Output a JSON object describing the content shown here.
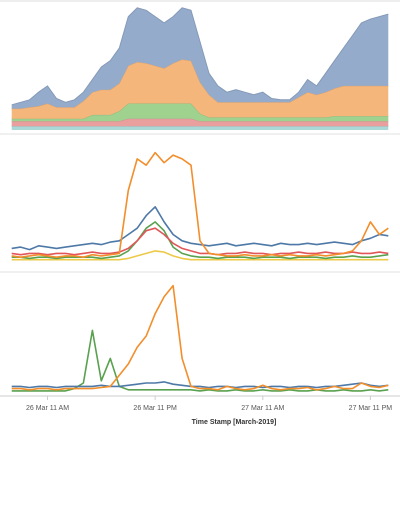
{
  "chart_data": [
    {
      "type": "area",
      "stacked": true,
      "ylim": [
        0,
        100
      ],
      "xlim": [
        -5.3,
        39.3
      ],
      "x": [
        -4,
        -3,
        -2,
        -1,
        0,
        1,
        2,
        3,
        4,
        5,
        6,
        7,
        8,
        9,
        10,
        11,
        12,
        13,
        14,
        15,
        16,
        17,
        18,
        19,
        20,
        21,
        22,
        23,
        24,
        25,
        26,
        27,
        28,
        29,
        30,
        31,
        32,
        33,
        34,
        35,
        36,
        37,
        38
      ],
      "series": [
        {
          "color": "#a9d8d6",
          "values": [
            3,
            3,
            3,
            3,
            3,
            3,
            3,
            3,
            3,
            3,
            3,
            3,
            3,
            3,
            3,
            3,
            3,
            3,
            3,
            3,
            3,
            3,
            3,
            3,
            3,
            3,
            3,
            3,
            3,
            3,
            3,
            3,
            3,
            3,
            3,
            3,
            3,
            3,
            3,
            3,
            3,
            3,
            3
          ]
        },
        {
          "color": "#ea9f9f",
          "values": [
            4,
            4,
            4,
            4,
            4,
            4,
            4,
            4,
            4,
            4,
            4,
            4,
            4,
            6,
            6,
            6,
            6,
            6,
            6,
            6,
            6,
            4,
            4,
            4,
            4,
            4,
            4,
            4,
            4,
            4,
            4,
            4,
            4,
            4,
            4,
            4,
            4,
            4,
            4,
            4,
            4,
            4,
            4
          ]
        },
        {
          "color": "#9fd18f",
          "values": [
            2,
            2,
            2,
            2,
            2,
            2,
            2,
            2,
            2,
            5,
            5,
            5,
            8,
            12,
            12,
            12,
            12,
            12,
            12,
            12,
            12,
            6,
            3,
            3,
            3,
            3,
            3,
            3,
            3,
            3,
            3,
            3,
            3,
            3,
            3,
            3,
            4,
            4,
            4,
            4,
            4,
            4,
            4
          ]
        },
        {
          "color": "#f5b67c",
          "values": [
            8,
            8,
            9,
            10,
            12,
            9,
            9,
            9,
            14,
            18,
            20,
            20,
            22,
            30,
            33,
            32,
            30,
            28,
            32,
            35,
            34,
            25,
            18,
            12,
            12,
            12,
            12,
            12,
            12,
            12,
            12,
            12,
            16,
            20,
            18,
            20,
            22,
            24,
            24,
            24,
            24,
            24,
            24
          ]
        },
        {
          "color": "#94abcb",
          "values": [
            3,
            5,
            6,
            11,
            14,
            7,
            4,
            6,
            7,
            10,
            18,
            23,
            28,
            39,
            43,
            42,
            39,
            36,
            37,
            41,
            40,
            32,
            17,
            13,
            8,
            10,
            8,
            6,
            8,
            3,
            2,
            2,
            4,
            10,
            7,
            15,
            22,
            30,
            40,
            50,
            53,
            55,
            57
          ]
        }
      ]
    },
    {
      "type": "line",
      "ylim": [
        0,
        100
      ],
      "xlim": [
        -5.3,
        39.3
      ],
      "x": [
        -4,
        -3,
        -2,
        -1,
        0,
        1,
        2,
        3,
        4,
        5,
        6,
        7,
        8,
        9,
        10,
        11,
        12,
        13,
        14,
        15,
        16,
        17,
        18,
        19,
        20,
        21,
        22,
        23,
        24,
        25,
        26,
        27,
        28,
        29,
        30,
        31,
        32,
        33,
        34,
        35,
        36,
        37,
        38
      ],
      "series": [
        {
          "color": "#edc948",
          "values": [
            5,
            5,
            5,
            5,
            5,
            5,
            5,
            5,
            5,
            5,
            5,
            5,
            5,
            6,
            8,
            10,
            12,
            11,
            8,
            6,
            5,
            5,
            5,
            5,
            5,
            5,
            5,
            5,
            5,
            5,
            5,
            5,
            5,
            5,
            5,
            5,
            5,
            5,
            5,
            5,
            5,
            5,
            5
          ]
        },
        {
          "color": "#59a14f",
          "values": [
            7,
            7,
            6,
            7,
            7,
            6,
            7,
            7,
            7,
            7,
            6,
            7,
            8,
            12,
            20,
            30,
            35,
            28,
            15,
            10,
            8,
            7,
            7,
            6,
            7,
            7,
            7,
            6,
            7,
            7,
            7,
            6,
            7,
            7,
            7,
            6,
            7,
            7,
            8,
            7,
            7,
            8,
            9
          ]
        },
        {
          "color": "#e15759",
          "values": [
            10,
            9,
            10,
            10,
            9,
            10,
            10,
            9,
            10,
            11,
            10,
            10,
            11,
            14,
            20,
            28,
            30,
            25,
            18,
            14,
            12,
            10,
            10,
            9,
            10,
            10,
            11,
            10,
            10,
            9,
            10,
            10,
            11,
            10,
            10,
            11,
            10,
            10,
            11,
            10,
            10,
            11,
            10
          ]
        },
        {
          "color": "#4e79a7",
          "values": [
            14,
            15,
            13,
            16,
            15,
            14,
            15,
            16,
            17,
            18,
            17,
            19,
            20,
            25,
            30,
            40,
            47,
            35,
            25,
            20,
            18,
            17,
            16,
            17,
            18,
            16,
            17,
            18,
            17,
            16,
            18,
            17,
            17,
            18,
            17,
            18,
            19,
            18,
            17,
            20,
            22,
            25,
            24
          ]
        },
        {
          "color": "#f28e2b",
          "values": [
            8,
            7,
            8,
            9,
            8,
            7,
            8,
            8,
            7,
            9,
            8,
            9,
            10,
            60,
            85,
            80,
            90,
            82,
            88,
            85,
            80,
            20,
            10,
            9,
            8,
            8,
            9,
            8,
            8,
            9,
            8,
            9,
            8,
            8,
            9,
            8,
            9,
            10,
            12,
            20,
            35,
            25,
            30
          ]
        }
      ]
    },
    {
      "type": "line",
      "ylim": [
        0,
        100
      ],
      "xlim": [
        -5.3,
        39.3
      ],
      "x": [
        -4,
        -3,
        -2,
        -1,
        0,
        1,
        2,
        3,
        4,
        5,
        6,
        7,
        8,
        9,
        10,
        11,
        12,
        13,
        14,
        15,
        16,
        17,
        18,
        19,
        20,
        21,
        22,
        23,
        24,
        25,
        26,
        27,
        28,
        29,
        30,
        31,
        32,
        33,
        34,
        35,
        36,
        37,
        38
      ],
      "xticks": [
        {
          "value": 0,
          "label": "26 Mar 11 AM"
        },
        {
          "value": 12,
          "label": "26 Mar 11 PM"
        },
        {
          "value": 24,
          "label": "27 Mar 11 AM"
        },
        {
          "value": 36,
          "label": "27 Mar 11 PM"
        }
      ],
      "xlabel": "Time Stamp [March-2019]",
      "series": [
        {
          "color": "#59a14f",
          "values": [
            1,
            1,
            1,
            1,
            1,
            1,
            1,
            3,
            8,
            55,
            10,
            30,
            5,
            2,
            2,
            2,
            2,
            2,
            2,
            2,
            2,
            1,
            2,
            1,
            1,
            2,
            1,
            1,
            2,
            1,
            1,
            2,
            1,
            1,
            2,
            1,
            1,
            2,
            1,
            1,
            2,
            1,
            2
          ]
        },
        {
          "color": "#4e79a7",
          "values": [
            5,
            5,
            4,
            5,
            5,
            4,
            5,
            5,
            5,
            5,
            6,
            5,
            5,
            6,
            7,
            8,
            8,
            9,
            7,
            6,
            5,
            5,
            4,
            5,
            5,
            4,
            5,
            5,
            4,
            5,
            5,
            4,
            5,
            5,
            4,
            5,
            5,
            6,
            7,
            8,
            6,
            5,
            6
          ]
        },
        {
          "color": "#f28e2b",
          "values": [
            3,
            3,
            2,
            3,
            3,
            2,
            3,
            3,
            3,
            3,
            4,
            5,
            15,
            25,
            40,
            50,
            70,
            85,
            95,
            30,
            5,
            3,
            3,
            2,
            5,
            3,
            2,
            3,
            6,
            3,
            2,
            3,
            3,
            4,
            2,
            3,
            5,
            3,
            3,
            8,
            5,
            4,
            6
          ]
        }
      ]
    }
  ]
}
